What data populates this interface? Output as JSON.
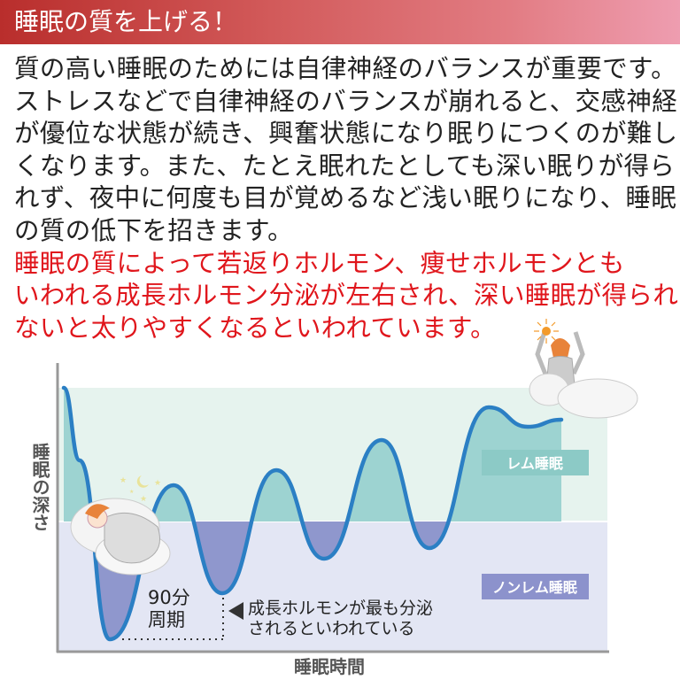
{
  "header": {
    "title": "睡眠の質を上げる！"
  },
  "body": {
    "lines": [
      "質の高い睡眠のためには自律神経のバランスが重要です。",
      "ストレスなどで自律神経のバランスが崩れると、交感神経",
      "が優位な状態が続き、興奮状態になり眠りにつくのが難し",
      "くなります。また、たとえ眠れたとしても深い眠りが得ら",
      "れず、夜中に何度も目が覚めるなど浅い眠りになり、睡眠",
      "の質の低下を招きます。"
    ],
    "highlight_lines": [
      "睡眠の質によって若返りホルモン、痩せホルモンとも",
      "いわれる成長ホルモン分泌が左右され、深い睡眠が得られ",
      "ないと太りやすくなるといわれています。"
    ]
  },
  "diagram": {
    "y_axis_label": "睡眠の深さ",
    "x_axis_label": "睡眠時間",
    "rem_label": "レム睡眠",
    "nonrem_label": "ノンレム睡眠",
    "cycle_label_1": "90分",
    "cycle_label_2": "周期",
    "annotation_1": "成長ホルモンが最も分泌",
    "annotation_2": "されるといわれている",
    "colors": {
      "rem_band": "#e6f3ee",
      "nonrem_band": "#e3e6f4",
      "rem_fill": "#9dd3d1",
      "nonrem_fill": "#8f97cd",
      "curve": "#2b7fc4",
      "rem_label_bg": "#8ccac6",
      "nonrem_label_bg": "#8c92cc",
      "sun": "#f39a2a"
    },
    "icons": [
      "sleeping-woman-illustration",
      "moon-stars-icon",
      "waking-woman-illustration",
      "sun-icon"
    ]
  }
}
